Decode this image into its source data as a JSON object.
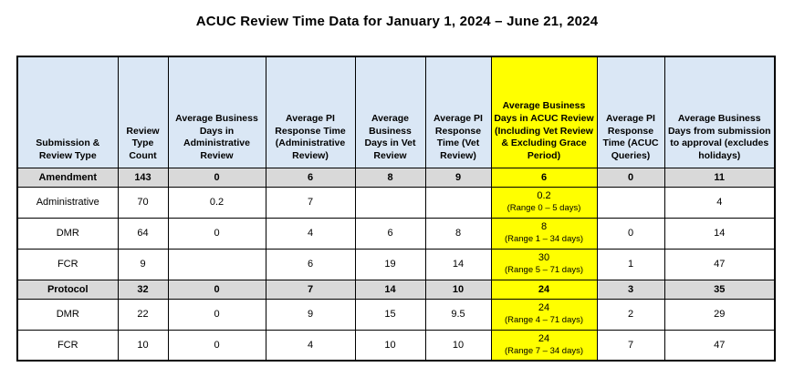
{
  "title": "ACUC Review Time Data for January 1, 2024 – June 21, 2024",
  "colors": {
    "header_bg": "#dae7f5",
    "summary_row_bg": "#d9d9d9",
    "highlight_bg": "#ffff00",
    "border": "#000000"
  },
  "table": {
    "columns": [
      {
        "label": "Submission & Review Type",
        "highlight": false
      },
      {
        "label": "Review Type Count",
        "highlight": false
      },
      {
        "label": "Average Business Days in Administrative Review",
        "highlight": false
      },
      {
        "label": "Average PI Response Time (Administrative Review)",
        "highlight": false
      },
      {
        "label": "Average Business Days in Vet Review",
        "highlight": false
      },
      {
        "label": "Average PI Response Time (Vet Review)",
        "highlight": false
      },
      {
        "label": "Average Business Days in ACUC Review (Including Vet Review & Excluding Grace Period)",
        "highlight": true
      },
      {
        "label": "Average PI Response Time (ACUC Queries)",
        "highlight": false
      },
      {
        "label": "Average Business Days from submission to approval (excludes holidays)",
        "highlight": false
      }
    ],
    "rows": [
      {
        "type": "summary",
        "cells": [
          "Amendment",
          "143",
          "0",
          "6",
          "8",
          "9",
          "6",
          "0",
          "11"
        ]
      },
      {
        "type": "data",
        "cells": [
          "Administrative",
          "70",
          "0.2",
          "7",
          "",
          "",
          {
            "value": "0.2",
            "range": "(Range 0 – 5 days)"
          },
          "",
          "4"
        ]
      },
      {
        "type": "data",
        "cells": [
          "DMR",
          "64",
          "0",
          "4",
          "6",
          "8",
          {
            "value": "8",
            "range": "(Range 1 – 34 days)"
          },
          "0",
          "14"
        ]
      },
      {
        "type": "data",
        "cells": [
          "FCR",
          "9",
          "",
          "6",
          "19",
          "14",
          {
            "value": "30",
            "range": "(Range 5 – 71 days)"
          },
          "1",
          "47"
        ]
      },
      {
        "type": "summary",
        "cells": [
          "Protocol",
          "32",
          "0",
          "7",
          "14",
          "10",
          "24",
          "3",
          "35"
        ]
      },
      {
        "type": "data",
        "cells": [
          "DMR",
          "22",
          "0",
          "9",
          "15",
          "9.5",
          {
            "value": "24",
            "range": "(Range 4 – 71 days)"
          },
          "2",
          "29"
        ]
      },
      {
        "type": "data",
        "cells": [
          "FCR",
          "10",
          "0",
          "4",
          "10",
          "10",
          {
            "value": "24",
            "range": "(Range 7 – 34 days)"
          },
          "7",
          "47"
        ]
      }
    ]
  }
}
